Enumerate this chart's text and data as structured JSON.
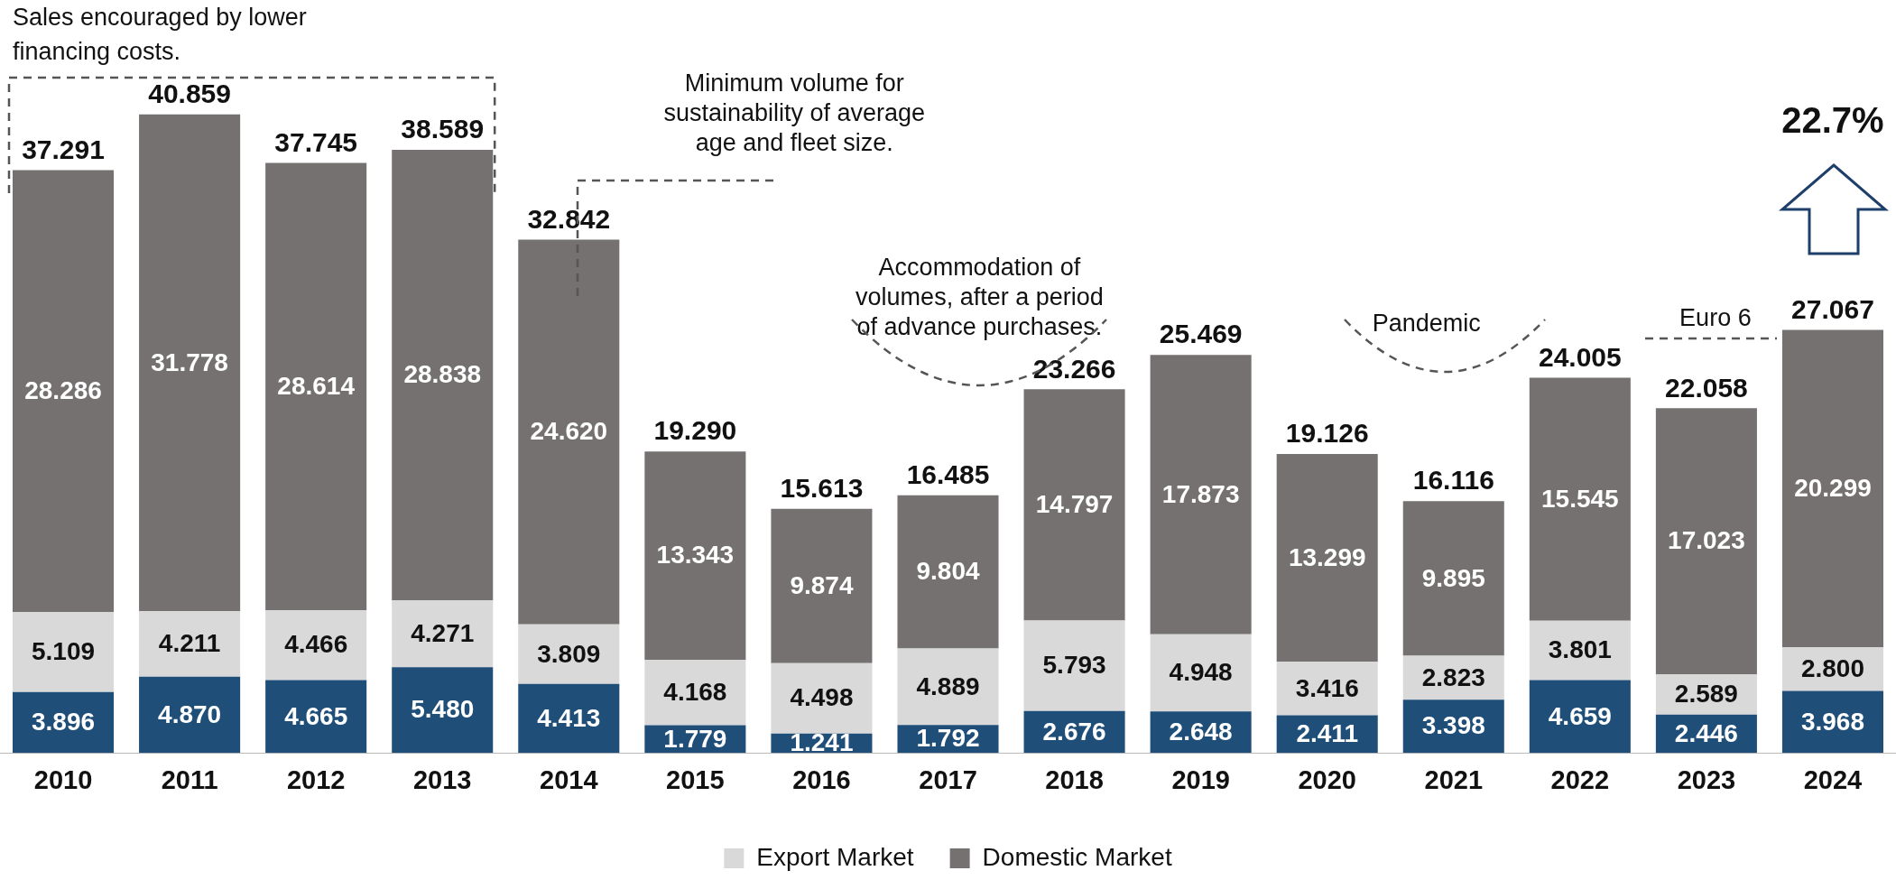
{
  "chart_data": {
    "type": "bar",
    "stacked": true,
    "categories": [
      "2010",
      "2011",
      "2012",
      "2013",
      "2014",
      "2015",
      "2016",
      "2017",
      "2018",
      "2019",
      "2020",
      "2021",
      "2022",
      "2023",
      "2024"
    ],
    "tick_labels": "x",
    "grid": false,
    "legend": "bottom",
    "series": [
      {
        "color": "#1f4e79",
        "values": [
          3.896,
          4.87,
          4.665,
          5.48,
          4.413,
          1.779,
          1.241,
          1.792,
          2.676,
          2.648,
          2.411,
          3.398,
          4.659,
          2.446,
          3.968
        ],
        "value_labels": [
          "3.896",
          "4.870",
          "4.665",
          "5.480",
          "4.413",
          "1.779",
          "1.241",
          "1.792",
          "2.676",
          "2.648",
          "2.411",
          "3.398",
          "4.659",
          "2.446",
          "3.968"
        ]
      },
      {
        "name": "Export Market",
        "color": "#d9d9d9",
        "values": [
          5.109,
          4.211,
          4.466,
          4.271,
          3.809,
          4.168,
          4.498,
          4.889,
          5.793,
          4.948,
          3.416,
          2.823,
          3.801,
          2.589,
          2.8
        ],
        "value_labels": [
          "5.109",
          "4.211",
          "4.466",
          "4.271",
          "3.809",
          "4.168",
          "4.498",
          "4.889",
          "5.793",
          "4.948",
          "3.416",
          "2.823",
          "3.801",
          "2.589",
          "2.800"
        ]
      },
      {
        "name": "Domestic Market",
        "color": "#767171",
        "values": [
          28.286,
          31.778,
          28.614,
          28.838,
          24.62,
          13.343,
          9.874,
          9.804,
          14.797,
          17.873,
          13.299,
          9.895,
          15.545,
          17.023,
          20.299
        ],
        "value_labels": [
          "28.286",
          "31.778",
          "28.614",
          "28.838",
          "24.620",
          "13.343",
          "9.874",
          "9.804",
          "14.797",
          "17.873",
          "13.299",
          "9.895",
          "15.545",
          "17.023",
          "20.299"
        ]
      }
    ],
    "totals": [
      "37.291",
      "40.859",
      "37.745",
      "38.589",
      "32.842",
      "19.290",
      "15.613",
      "16.485",
      "23.266",
      "25.469",
      "19.126",
      "16.116",
      "24.005",
      "22.058",
      "27.067"
    ],
    "annotations": [
      "Sales encouraged by lower financing costs.",
      "Minimum volume for sustainability of average age and fleet size.",
      "Accommodation of volumes, after a period of advance purchases.",
      "Pandemic",
      "Euro 6",
      "22.7%"
    ]
  }
}
